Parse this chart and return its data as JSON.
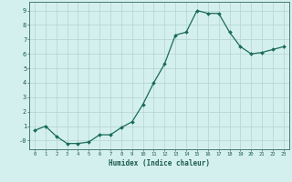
{
  "x": [
    0,
    1,
    2,
    3,
    4,
    5,
    6,
    7,
    8,
    9,
    10,
    11,
    12,
    13,
    14,
    15,
    16,
    17,
    18,
    19,
    20,
    21,
    22,
    23
  ],
  "y": [
    0.7,
    1.0,
    0.3,
    -0.2,
    -0.2,
    -0.1,
    0.4,
    0.4,
    0.9,
    1.3,
    2.5,
    4.0,
    5.3,
    7.3,
    7.5,
    9.0,
    8.8,
    8.8,
    7.5,
    6.5,
    6.0,
    6.1,
    6.3,
    6.5
  ],
  "title": "",
  "xlabel": "Humidex (Indice chaleur)",
  "ylabel": "",
  "line_color": "#1a6b5a",
  "marker_color": "#1a6b5a",
  "bg_color": "#d4f0ee",
  "grid_color": "#b8d8d4",
  "tick_color": "#1a5c4a",
  "spine_color": "#4a7a70",
  "ylim": [
    -0.6,
    9.6
  ],
  "xlim": [
    -0.5,
    23.5
  ],
  "yticks": [
    0,
    1,
    2,
    3,
    4,
    5,
    6,
    7,
    8,
    9
  ],
  "ytick_labels": [
    "-0",
    "1",
    "2",
    "3",
    "4",
    "5",
    "6",
    "7",
    "8",
    "9"
  ],
  "xticks": [
    0,
    1,
    2,
    3,
    4,
    5,
    6,
    7,
    8,
    9,
    10,
    11,
    12,
    13,
    14,
    15,
    16,
    17,
    18,
    19,
    20,
    21,
    22,
    23
  ]
}
